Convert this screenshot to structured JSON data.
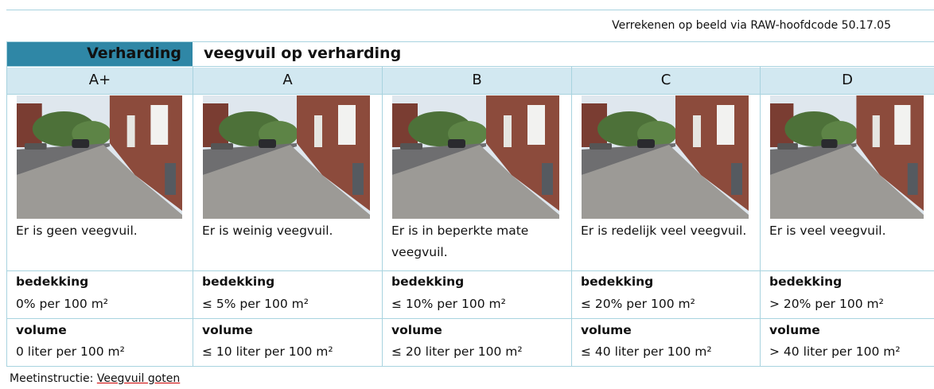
{
  "reference": "Verrekenen op beeld via RAW-hoofdcode 50.17.05",
  "section": "Verharding",
  "title": "veegvuil op verharding",
  "columns": [
    {
      "grade": "A+",
      "description": "Er is geen veegvuil.",
      "coverage_label": "bedekking",
      "coverage": "0% per 100 m²",
      "volume_label": "volume",
      "volume": "0 liter per 100 m²"
    },
    {
      "grade": "A",
      "description": "Er is weinig veegvuil.",
      "coverage_label": "bedekking",
      "coverage": "≤ 5% per 100 m²",
      "volume_label": "volume",
      "volume": "≤ 10 liter per 100 m²"
    },
    {
      "grade": "B",
      "description": "Er is in beperkte mate veegvuil.",
      "coverage_label": "bedekking",
      "coverage": "≤ 10% per 100 m²",
      "volume_label": "volume",
      "volume": "≤ 20 liter per 100 m²"
    },
    {
      "grade": "C",
      "description": "Er is redelijk veel veegvuil.",
      "coverage_label": "bedekking",
      "coverage": "≤ 20% per 100 m²",
      "volume_label": "volume",
      "volume": "≤ 40 liter per 100 m²"
    },
    {
      "grade": "D",
      "description": "Er is veel veegvuil.",
      "coverage_label": "bedekking",
      "coverage": "> 20% per 100 m²",
      "volume_label": "volume",
      "volume": "> 40 liter per 100 m²"
    }
  ],
  "footer": {
    "prefix": "Meetinstructie:",
    "link": "Veegvuil goten"
  }
}
